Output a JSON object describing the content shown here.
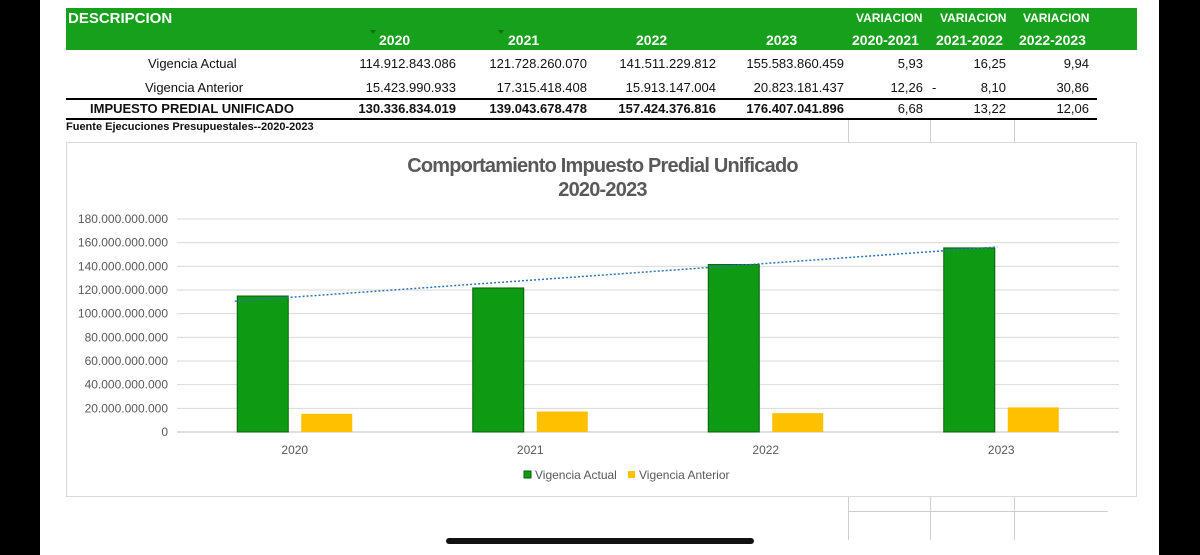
{
  "table": {
    "header": {
      "descripcion": "DESCRIPCION",
      "years": [
        "2020",
        "2021",
        "2022",
        "2023"
      ],
      "variacion": [
        "VARIACION",
        "VARIACION",
        "VARIACION"
      ],
      "periods": [
        "2020-2021",
        "2021-2022",
        "2022-2023"
      ]
    },
    "rows": [
      {
        "label": "Vigencia Actual",
        "values": [
          "114.912.843.086",
          "121.728.260.070",
          "141.511.229.812",
          "155.583.860.459"
        ],
        "variations": [
          "5,93",
          "16,25",
          "9,94"
        ],
        "dash": ""
      },
      {
        "label": "Vigencia Anterior",
        "values": [
          "15.423.990.933",
          "17.315.418.408",
          "15.913.147.004",
          "20.823.181.437"
        ],
        "variations": [
          "12,26",
          "8,10",
          "30,86"
        ],
        "dash": "-"
      },
      {
        "label": "IMPUESTO PREDIAL UNIFICADO",
        "values": [
          "130.336.834.019",
          "139.043.678.478",
          "157.424.376.816",
          "176.407.041.896"
        ],
        "variations": [
          "6,68",
          "13,22",
          "12,06"
        ],
        "dash": ""
      }
    ],
    "source": "Fuente Ejecuciones Presupuestales--2020-2023"
  },
  "chart_data": {
    "type": "bar",
    "title": "Comportamiento Impuesto Predial Unificado",
    "subtitle": "2020-2023",
    "categories": [
      "2020",
      "2021",
      "2022",
      "2023"
    ],
    "series": [
      {
        "name": "Vigencia Actual",
        "color": "#0e9a12",
        "values": [
          114912843086,
          121728260070,
          141511229812,
          155583860459
        ]
      },
      {
        "name": "Vigencia Anterior",
        "color": "#ffc000",
        "values": [
          15423990933,
          17315418408,
          15913147004,
          20823181437
        ]
      }
    ],
    "trendline": {
      "series": "Vigencia Actual",
      "style": "dotted",
      "color": "#2e75b6"
    },
    "ylim": [
      0,
      180000000000
    ],
    "ytick_labels": [
      "0",
      "20.000.000.000",
      "40.000.000.000",
      "60.000.000.000",
      "80.000.000.000",
      "100.000.000.000",
      "120.000.000.000",
      "140.000.000.000",
      "160.000.000.000",
      "180.000.000.000"
    ],
    "grid": true,
    "legend": "bottom"
  }
}
